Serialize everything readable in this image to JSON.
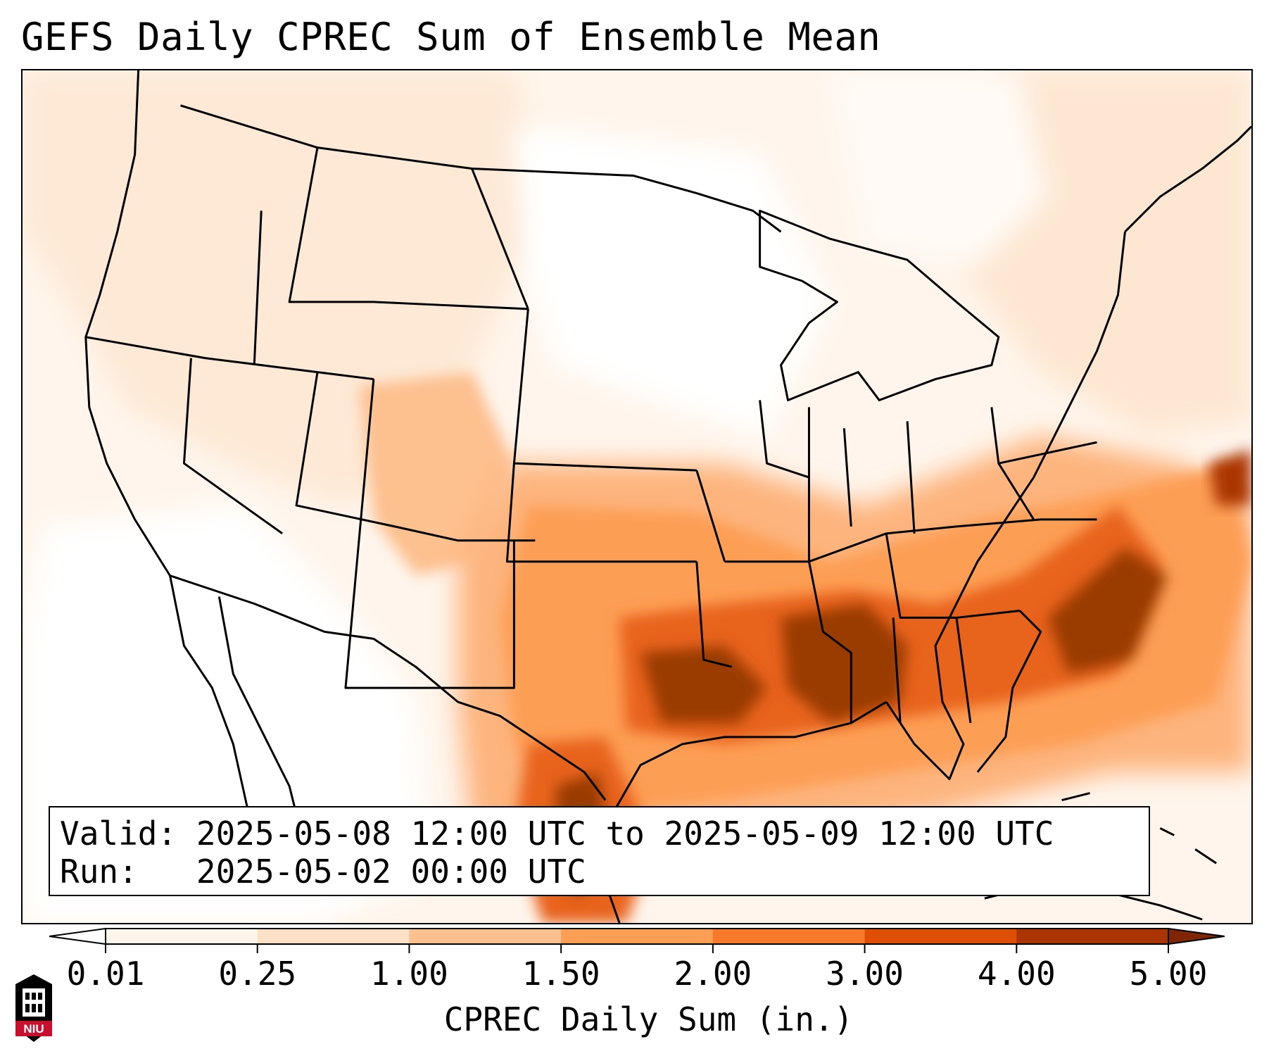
{
  "title": "GEFS Daily CPREC Sum of Ensemble Mean",
  "info": {
    "valid_label": "Valid:",
    "valid_value": "2025-05-08 12:00 UTC to 2025-05-09 12:00 UTC",
    "run_label": "Run:",
    "run_value": "2025-05-02 00:00 UTC"
  },
  "colorbar": {
    "label": "CPREC Daily Sum (in.)",
    "ticks": [
      "0.01",
      "0.25",
      "1.00",
      "1.50",
      "2.00",
      "3.00",
      "4.00",
      "5.00"
    ],
    "colors": [
      "#ffffff",
      "#fff5eb",
      "#fde1c6",
      "#fdc08f",
      "#fd9e54",
      "#f67a29",
      "#de4f05",
      "#aa3503",
      "#7f2704"
    ]
  },
  "logo": {
    "text": "NIU",
    "color": "#c8102e"
  },
  "map": {
    "region": "Contiguous United States",
    "colors": {
      "ocean_background": "#fff5ec",
      "border": "#000000"
    }
  }
}
